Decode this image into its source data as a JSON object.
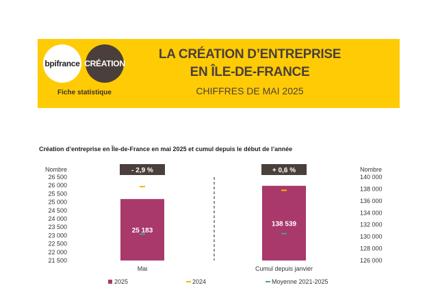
{
  "header": {
    "logo_bpi": "bpifrance",
    "logo_creation": "CRÉATION",
    "fiche": "Fiche statistique",
    "title_line1": "LA CRÉATION D’ENTREPRISE",
    "title_line2": "EN ÎLE-DE-FRANCE",
    "subtitle": "CHIFFRES DE MAI 2025"
  },
  "colors": {
    "banner": "#FFCB05",
    "series_2025": "#A8396A",
    "series_2024": "#F5B800",
    "series_avg": "#3AAA8A",
    "badge": "#4a3f3a"
  },
  "chart_data": {
    "type": "bar",
    "title": "Création d’entreprise en Île-de-France en mai 2025 et cumul depuis le début de l’année",
    "categories": [
      "Mai",
      "Cumul depuis janvier"
    ],
    "left_axis": {
      "label": "Nombre",
      "ticks": [
        "26 500",
        "26 000",
        "25 500",
        "25 000",
        "24 500",
        "24 000",
        "23 500",
        "23 000",
        "22 500",
        "22 000",
        "21 500"
      ],
      "range": [
        21500,
        26500
      ]
    },
    "right_axis": {
      "label": "Nombre",
      "ticks": [
        "140 000",
        "138 000",
        "136 000",
        "134 000",
        "132 000",
        "130 000",
        "128 000",
        "126 000"
      ],
      "range": [
        126000,
        140000
      ]
    },
    "series": [
      {
        "name": "2025",
        "values": [
          25183,
          138539
        ],
        "labels": [
          "25 183",
          "138 539"
        ]
      },
      {
        "name": "2024",
        "values": [
          25930,
          137780
        ]
      },
      {
        "name": "Moyenne 2021-2025",
        "values": [
          23080,
          130500
        ]
      }
    ],
    "badges": [
      "- 2,9 %",
      "+ 0,6 %"
    ]
  }
}
